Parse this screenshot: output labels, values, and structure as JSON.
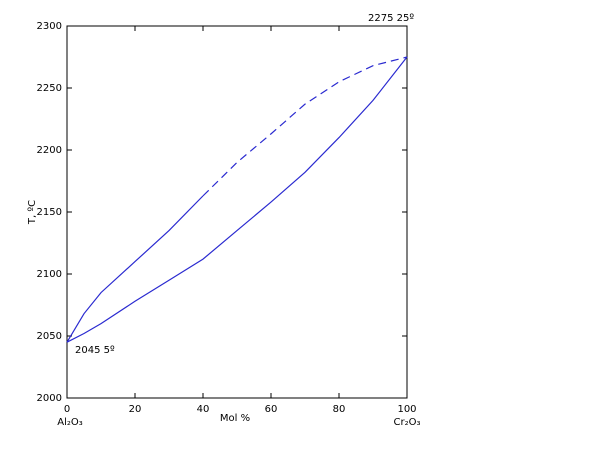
{
  "chart_data": {
    "type": "line",
    "x": [
      0,
      5,
      10,
      20,
      30,
      40,
      50,
      60,
      70,
      80,
      90,
      100
    ],
    "series": [
      {
        "color": "#2a2ad0",
        "dashed": false,
        "values": [
          2045,
          2068,
          2085,
          2110,
          2135,
          2163,
          null,
          null,
          null,
          null,
          null,
          null
        ]
      },
      {
        "color": "#2a2ad0",
        "dashed": true,
        "values": [
          null,
          null,
          null,
          null,
          null,
          2163,
          2190,
          2213,
          2237,
          2255,
          2268,
          2275
        ]
      },
      {
        "color": "#2a2ad0",
        "dashed": false,
        "values": [
          2045,
          2052,
          2060,
          2078,
          2095,
          2112,
          2135,
          2158,
          2182,
          2210,
          2240,
          2275
        ]
      }
    ],
    "xlim": [
      0,
      100
    ],
    "xticks": [
      0,
      20,
      40,
      60,
      80,
      100
    ],
    "ylim": [
      2000,
      2300
    ],
    "yticks": [
      2000,
      2050,
      2100,
      2150,
      2200,
      2250,
      2300
    ],
    "xlabel": "Mol %",
    "ylabel": "T, ºC",
    "x_end_labels": [
      "Al₂O₃",
      "Cr₂O₃"
    ],
    "annotations": [
      "2275 25º",
      "2045 5º"
    ]
  }
}
